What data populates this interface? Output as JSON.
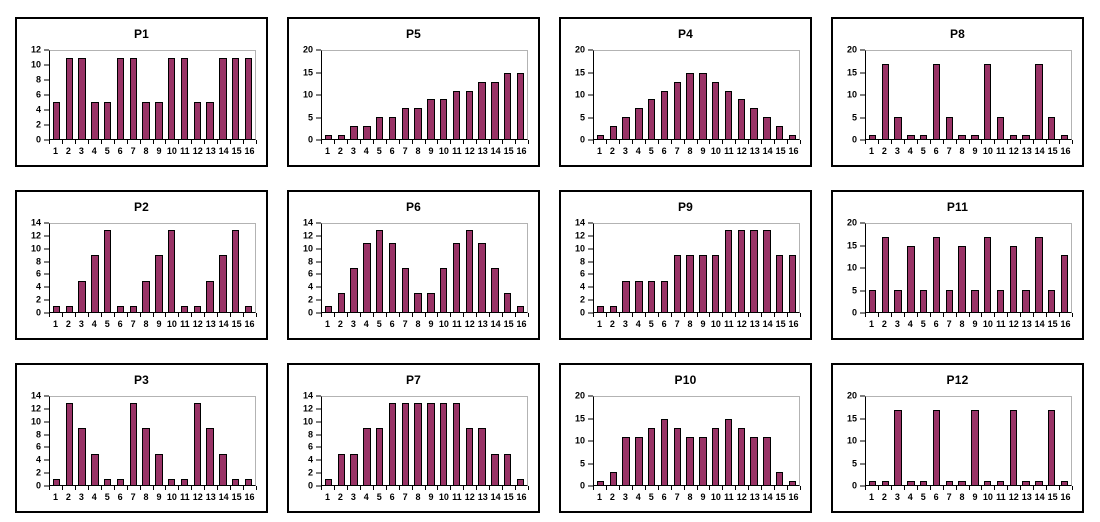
{
  "page": {
    "background": "#ffffff"
  },
  "style": {
    "bar_fill": "#993366",
    "bar_border": "#000000",
    "axis_color": "#000000",
    "plot_border": "#b3b3b3",
    "panel_border": "#000000"
  },
  "chart_data": [
    {
      "type": "bar",
      "title": "P1",
      "categories": [
        "1",
        "2",
        "3",
        "4",
        "5",
        "6",
        "7",
        "8",
        "9",
        "10",
        "11",
        "12",
        "13",
        "14",
        "15",
        "16"
      ],
      "values": [
        5,
        11,
        11,
        5,
        5,
        11,
        11,
        5,
        5,
        11,
        11,
        5,
        5,
        11,
        11,
        11
      ],
      "xlabel": "",
      "ylabel": "",
      "ylim": [
        0,
        12
      ],
      "yticks": [
        0,
        2,
        4,
        6,
        8,
        10,
        12
      ],
      "grid": false,
      "legend": "none"
    },
    {
      "type": "bar",
      "title": "P5",
      "categories": [
        "1",
        "2",
        "3",
        "4",
        "5",
        "6",
        "7",
        "8",
        "9",
        "10",
        "11",
        "12",
        "13",
        "14",
        "15",
        "16"
      ],
      "values": [
        1,
        1,
        3,
        3,
        5,
        5,
        7,
        7,
        9,
        9,
        11,
        11,
        13,
        13,
        15,
        15
      ],
      "xlabel": "",
      "ylabel": "",
      "ylim": [
        0,
        20
      ],
      "yticks": [
        0,
        5,
        10,
        15,
        20
      ],
      "grid": false,
      "legend": "none"
    },
    {
      "type": "bar",
      "title": "P4",
      "categories": [
        "1",
        "2",
        "3",
        "4",
        "5",
        "6",
        "7",
        "8",
        "9",
        "10",
        "11",
        "12",
        "13",
        "14",
        "15",
        "16"
      ],
      "values": [
        1,
        3,
        5,
        7,
        9,
        11,
        13,
        15,
        15,
        13,
        11,
        9,
        7,
        5,
        3,
        1
      ],
      "xlabel": "",
      "ylabel": "",
      "ylim": [
        0,
        20
      ],
      "yticks": [
        0,
        5,
        10,
        15,
        20
      ],
      "grid": false,
      "legend": "none"
    },
    {
      "type": "bar",
      "title": "P8",
      "categories": [
        "1",
        "2",
        "3",
        "4",
        "5",
        "6",
        "7",
        "8",
        "9",
        "10",
        "11",
        "12",
        "13",
        "14",
        "15",
        "16"
      ],
      "values": [
        1,
        17,
        5,
        1,
        1,
        17,
        5,
        1,
        1,
        17,
        5,
        1,
        1,
        17,
        5,
        1
      ],
      "xlabel": "",
      "ylabel": "",
      "ylim": [
        0,
        20
      ],
      "yticks": [
        0,
        5,
        10,
        15,
        20
      ],
      "grid": false,
      "legend": "none"
    },
    {
      "type": "bar",
      "title": "P2",
      "categories": [
        "1",
        "2",
        "3",
        "4",
        "5",
        "6",
        "7",
        "8",
        "9",
        "10",
        "11",
        "12",
        "13",
        "14",
        "15",
        "16"
      ],
      "values": [
        1,
        1,
        5,
        9,
        13,
        1,
        1,
        5,
        9,
        13,
        1,
        1,
        5,
        9,
        13,
        1
      ],
      "xlabel": "",
      "ylabel": "",
      "ylim": [
        0,
        14
      ],
      "yticks": [
        0,
        2,
        4,
        6,
        8,
        10,
        12,
        14
      ],
      "grid": false,
      "legend": "none"
    },
    {
      "type": "bar",
      "title": "P6",
      "categories": [
        "1",
        "2",
        "3",
        "4",
        "5",
        "6",
        "7",
        "8",
        "9",
        "10",
        "11",
        "12",
        "13",
        "14",
        "15",
        "16"
      ],
      "values": [
        1,
        3,
        7,
        11,
        13,
        11,
        7,
        3,
        3,
        7,
        11,
        13,
        11,
        7,
        3,
        1
      ],
      "xlabel": "",
      "ylabel": "",
      "ylim": [
        0,
        14
      ],
      "yticks": [
        0,
        2,
        4,
        6,
        8,
        10,
        12,
        14
      ],
      "grid": false,
      "legend": "none"
    },
    {
      "type": "bar",
      "title": "P9",
      "categories": [
        "1",
        "2",
        "3",
        "4",
        "5",
        "6",
        "7",
        "8",
        "9",
        "10",
        "11",
        "12",
        "13",
        "14",
        "15",
        "16"
      ],
      "values": [
        1,
        1,
        5,
        5,
        5,
        5,
        9,
        9,
        9,
        9,
        13,
        13,
        13,
        13,
        9,
        9
      ],
      "xlabel": "",
      "ylabel": "",
      "ylim": [
        0,
        14
      ],
      "yticks": [
        0,
        2,
        4,
        6,
        8,
        10,
        12,
        14
      ],
      "grid": false,
      "legend": "none"
    },
    {
      "type": "bar",
      "title": "P11",
      "categories": [
        "1",
        "2",
        "3",
        "4",
        "5",
        "6",
        "7",
        "8",
        "9",
        "10",
        "11",
        "12",
        "13",
        "14",
        "15",
        "16"
      ],
      "values": [
        5,
        17,
        5,
        15,
        5,
        17,
        5,
        15,
        5,
        17,
        5,
        15,
        5,
        17,
        5,
        13
      ],
      "xlabel": "",
      "ylabel": "",
      "ylim": [
        0,
        20
      ],
      "yticks": [
        0,
        5,
        10,
        15,
        20
      ],
      "grid": false,
      "legend": "none"
    },
    {
      "type": "bar",
      "title": "P3",
      "categories": [
        "1",
        "2",
        "3",
        "4",
        "5",
        "6",
        "7",
        "8",
        "9",
        "10",
        "11",
        "12",
        "13",
        "14",
        "15",
        "16"
      ],
      "values": [
        1,
        13,
        9,
        5,
        1,
        1,
        13,
        9,
        5,
        1,
        1,
        13,
        9,
        5,
        1,
        1
      ],
      "xlabel": "",
      "ylabel": "",
      "ylim": [
        0,
        14
      ],
      "yticks": [
        0,
        2,
        4,
        6,
        8,
        10,
        12,
        14
      ],
      "grid": false,
      "legend": "none"
    },
    {
      "type": "bar",
      "title": "P7",
      "categories": [
        "1",
        "2",
        "3",
        "4",
        "5",
        "6",
        "7",
        "8",
        "9",
        "10",
        "11",
        "12",
        "13",
        "14",
        "15",
        "16"
      ],
      "values": [
        1,
        5,
        5,
        9,
        9,
        13,
        13,
        13,
        13,
        13,
        13,
        9,
        9,
        5,
        5,
        1
      ],
      "xlabel": "",
      "ylabel": "",
      "ylim": [
        0,
        14
      ],
      "yticks": [
        0,
        2,
        4,
        6,
        8,
        10,
        12,
        14
      ],
      "grid": false,
      "legend": "none"
    },
    {
      "type": "bar",
      "title": "P10",
      "categories": [
        "1",
        "2",
        "3",
        "4",
        "5",
        "6",
        "7",
        "8",
        "9",
        "10",
        "11",
        "12",
        "13",
        "14",
        "15",
        "16"
      ],
      "values": [
        1,
        3,
        11,
        11,
        13,
        15,
        13,
        11,
        11,
        13,
        15,
        13,
        11,
        11,
        3,
        1
      ],
      "xlabel": "",
      "ylabel": "",
      "ylim": [
        0,
        20
      ],
      "yticks": [
        0,
        5,
        10,
        15,
        20
      ],
      "grid": false,
      "legend": "none"
    },
    {
      "type": "bar",
      "title": "P12",
      "categories": [
        "1",
        "2",
        "3",
        "4",
        "5",
        "6",
        "7",
        "8",
        "9",
        "10",
        "11",
        "12",
        "13",
        "14",
        "15",
        "16"
      ],
      "values": [
        1,
        1,
        17,
        1,
        1,
        17,
        1,
        1,
        17,
        1,
        1,
        17,
        1,
        1,
        17,
        1
      ],
      "xlabel": "",
      "ylabel": "",
      "ylim": [
        0,
        20
      ],
      "yticks": [
        0,
        5,
        10,
        15,
        20
      ],
      "grid": false,
      "legend": "none"
    }
  ]
}
